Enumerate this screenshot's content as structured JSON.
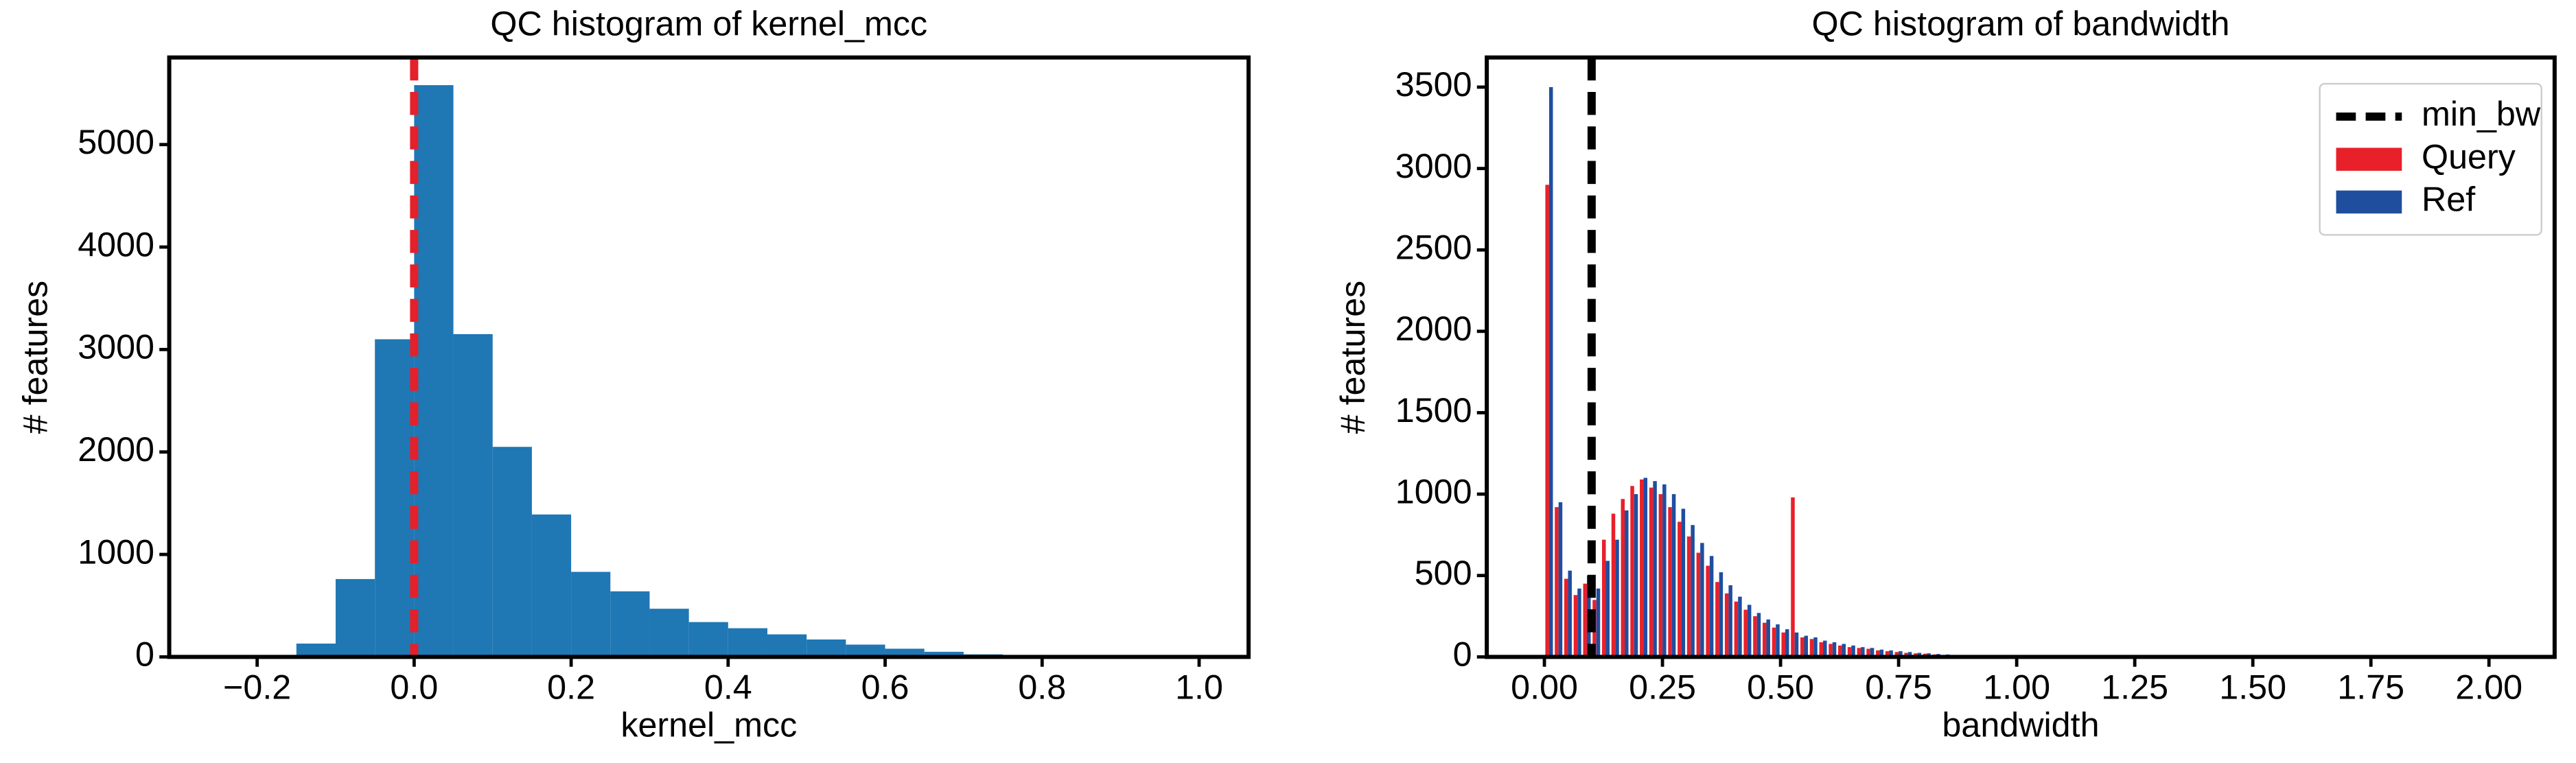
{
  "chart_data": [
    {
      "type": "histogram",
      "title": "QC histogram of kernel_mcc",
      "xlabel": "kernel_mcc",
      "ylabel": "# features",
      "color": "#1f77b4",
      "bins": [
        -0.15,
        -0.1,
        -0.05,
        0,
        0.05,
        0.1,
        0.15,
        0.2,
        0.25,
        0.3,
        0.35,
        0.4,
        0.45,
        0.5,
        0.55,
        0.6,
        0.65,
        0.7,
        0.75,
        0.8
      ],
      "values": [
        130,
        760,
        3100,
        5580,
        3150,
        2050,
        1390,
        830,
        640,
        470,
        340,
        280,
        220,
        170,
        120,
        80,
        50,
        25,
        10
      ],
      "vline": {
        "x": 0,
        "color": "#e3212b"
      },
      "xlim": [
        -0.312,
        1.063
      ],
      "ylim": [
        0,
        5850
      ],
      "xticks": [
        {
          "value": -0.2,
          "label": "−0.2"
        },
        {
          "value": 0,
          "label": "0.0"
        },
        0.2,
        0.4,
        0.6,
        0.8,
        {
          "value": 1,
          "label": "1.0"
        }
      ],
      "yticks": [
        0,
        1000,
        2000,
        3000,
        4000,
        5000
      ]
    },
    {
      "type": "histogram",
      "title": "QC histogram of bandwidth",
      "xlabel": "bandwidth",
      "ylabel": "# features",
      "bins": [
        0,
        0.02,
        0.04,
        0.06,
        0.08,
        0.1,
        0.12,
        0.14,
        0.16,
        0.18,
        0.2,
        0.22,
        0.24,
        0.26,
        0.28,
        0.3,
        0.32,
        0.34,
        0.36,
        0.38,
        0.4,
        0.42,
        0.44,
        0.46,
        0.48,
        0.5,
        0.52,
        0.54,
        0.56,
        0.58,
        0.6,
        0.62,
        0.64,
        0.66,
        0.68,
        0.7,
        0.72,
        0.74,
        0.76,
        0.78,
        0.8,
        0.82,
        0.84,
        0.86,
        0.88,
        0.9,
        0.92,
        0.94,
        0.96,
        0.98,
        1
      ],
      "series": [
        {
          "name": "Query",
          "color": "#e8202a",
          "values": [
            2900,
            920,
            480,
            380,
            450,
            350,
            720,
            880,
            970,
            1050,
            1090,
            1040,
            1000,
            920,
            830,
            740,
            640,
            560,
            460,
            390,
            340,
            290,
            250,
            210,
            180,
            150,
            980,
            120,
            110,
            90,
            80,
            70,
            60,
            55,
            50,
            40,
            35,
            30,
            25,
            22,
            20,
            15,
            12,
            10,
            8,
            7,
            6,
            5,
            4,
            3
          ]
        },
        {
          "name": "Ref",
          "color": "#1f4e9f",
          "values": [
            3500,
            950,
            530,
            420,
            500,
            420,
            590,
            720,
            900,
            1000,
            1100,
            1080,
            1060,
            1000,
            910,
            810,
            700,
            620,
            520,
            440,
            370,
            320,
            270,
            230,
            200,
            170,
            150,
            130,
            120,
            100,
            90,
            80,
            70,
            60,
            55,
            45,
            40,
            35,
            30,
            25,
            22,
            18,
            15,
            12,
            10,
            8,
            7,
            6,
            5,
            4
          ]
        }
      ],
      "vline": {
        "name": "min_bw",
        "x": 0.1,
        "color": "#000000"
      },
      "legend": "upper right",
      "xlim": [
        -0.122,
        2.139
      ],
      "ylim": [
        0,
        3682
      ],
      "xticks": [
        {
          "value": 0,
          "label": "0.00"
        },
        0.25,
        {
          "value": 0.5,
          "label": "0.50"
        },
        0.75,
        {
          "value": 1,
          "label": "1.00"
        },
        1.25,
        {
          "value": 1.5,
          "label": "1.50"
        },
        1.75,
        {
          "value": 2,
          "label": "2.00"
        }
      ],
      "yticks": [
        0,
        500,
        1000,
        1500,
        2000,
        2500,
        3000,
        3500
      ]
    }
  ]
}
